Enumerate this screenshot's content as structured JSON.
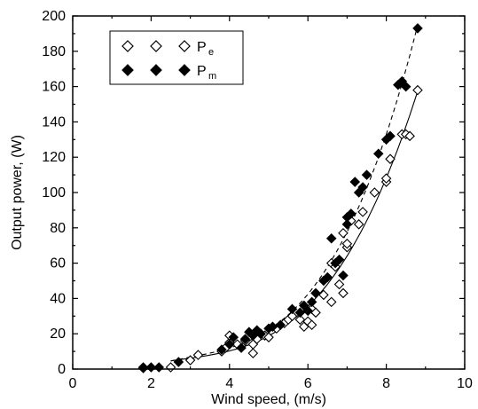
{
  "chart_data": {
    "type": "scatter",
    "title": "",
    "xlabel": "Wind speed, (m/s)",
    "ylabel": "Output power, (W)",
    "xlim": [
      0,
      10
    ],
    "ylim": [
      0,
      200
    ],
    "xticks": [
      "0",
      "2",
      "4",
      "6",
      "8",
      "10"
    ],
    "yticks": [
      "0",
      "20",
      "40",
      "60",
      "80",
      "100",
      "120",
      "140",
      "160",
      "180",
      "200"
    ],
    "grid": false,
    "legend_position": "top-left",
    "series": [
      {
        "name": "P",
        "subscript": "e",
        "marker": "open-diamond",
        "fit_line": "solid",
        "color": "#000000",
        "points": [
          [
            1.8,
            0.5
          ],
          [
            2.5,
            1
          ],
          [
            3.0,
            5
          ],
          [
            3.2,
            8
          ],
          [
            3.8,
            10
          ],
          [
            3.9,
            12
          ],
          [
            4.0,
            15
          ],
          [
            4.0,
            19
          ],
          [
            4.2,
            14
          ],
          [
            4.4,
            16
          ],
          [
            4.6,
            9
          ],
          [
            4.6,
            14
          ],
          [
            4.7,
            17
          ],
          [
            4.9,
            19
          ],
          [
            5.0,
            18
          ],
          [
            5.2,
            23
          ],
          [
            5.4,
            26
          ],
          [
            5.5,
            28
          ],
          [
            5.6,
            30
          ],
          [
            5.8,
            28
          ],
          [
            5.9,
            24
          ],
          [
            6.0,
            27
          ],
          [
            6.1,
            25
          ],
          [
            6.1,
            34
          ],
          [
            6.2,
            32
          ],
          [
            6.4,
            42
          ],
          [
            6.6,
            38
          ],
          [
            6.6,
            60
          ],
          [
            6.7,
            58
          ],
          [
            6.8,
            48
          ],
          [
            6.9,
            43
          ],
          [
            6.9,
            77
          ],
          [
            7.0,
            69
          ],
          [
            7.0,
            71
          ],
          [
            7.1,
            84
          ],
          [
            7.3,
            82
          ],
          [
            7.4,
            89
          ],
          [
            7.7,
            100
          ],
          [
            8.0,
            106
          ],
          [
            8.0,
            108
          ],
          [
            8.1,
            119
          ],
          [
            8.4,
            133
          ],
          [
            8.5,
            133
          ],
          [
            8.6,
            132
          ],
          [
            8.8,
            158
          ]
        ],
        "fit_x": [
          2.5,
          3.0,
          3.5,
          4.0,
          4.5,
          5.0,
          5.5,
          6.0,
          6.5,
          7.0,
          7.5,
          8.0,
          8.5,
          8.8
        ]
      },
      {
        "name": "P",
        "subscript": "m",
        "marker": "filled-diamond",
        "fit_line": "dashed",
        "color": "#000000",
        "points": [
          [
            1.8,
            1
          ],
          [
            2.0,
            1
          ],
          [
            2.2,
            1
          ],
          [
            2.7,
            4
          ],
          [
            3.8,
            11
          ],
          [
            4.0,
            14
          ],
          [
            4.1,
            18
          ],
          [
            4.3,
            12
          ],
          [
            4.4,
            17
          ],
          [
            4.5,
            21
          ],
          [
            4.6,
            19
          ],
          [
            4.7,
            22
          ],
          [
            4.8,
            20
          ],
          [
            5.0,
            23
          ],
          [
            5.1,
            24
          ],
          [
            5.3,
            25
          ],
          [
            5.6,
            34
          ],
          [
            5.8,
            32
          ],
          [
            5.9,
            36
          ],
          [
            6.0,
            33
          ],
          [
            6.1,
            38
          ],
          [
            6.2,
            43
          ],
          [
            6.4,
            50
          ],
          [
            6.5,
            52
          ],
          [
            6.6,
            74
          ],
          [
            6.7,
            60
          ],
          [
            6.8,
            62
          ],
          [
            6.9,
            53
          ],
          [
            7.0,
            82
          ],
          [
            7.0,
            86
          ],
          [
            7.1,
            88
          ],
          [
            7.2,
            106
          ],
          [
            7.3,
            100
          ],
          [
            7.4,
            103
          ],
          [
            7.5,
            110
          ],
          [
            7.8,
            122
          ],
          [
            8.0,
            130
          ],
          [
            8.1,
            132
          ],
          [
            8.3,
            161
          ],
          [
            8.4,
            163
          ],
          [
            8.5,
            160
          ],
          [
            8.8,
            193
          ]
        ],
        "fit_x": [
          2.5,
          3.0,
          3.5,
          4.0,
          4.5,
          5.0,
          5.5,
          6.0,
          6.5,
          7.0,
          7.5,
          8.0,
          8.5,
          8.8
        ]
      }
    ]
  }
}
